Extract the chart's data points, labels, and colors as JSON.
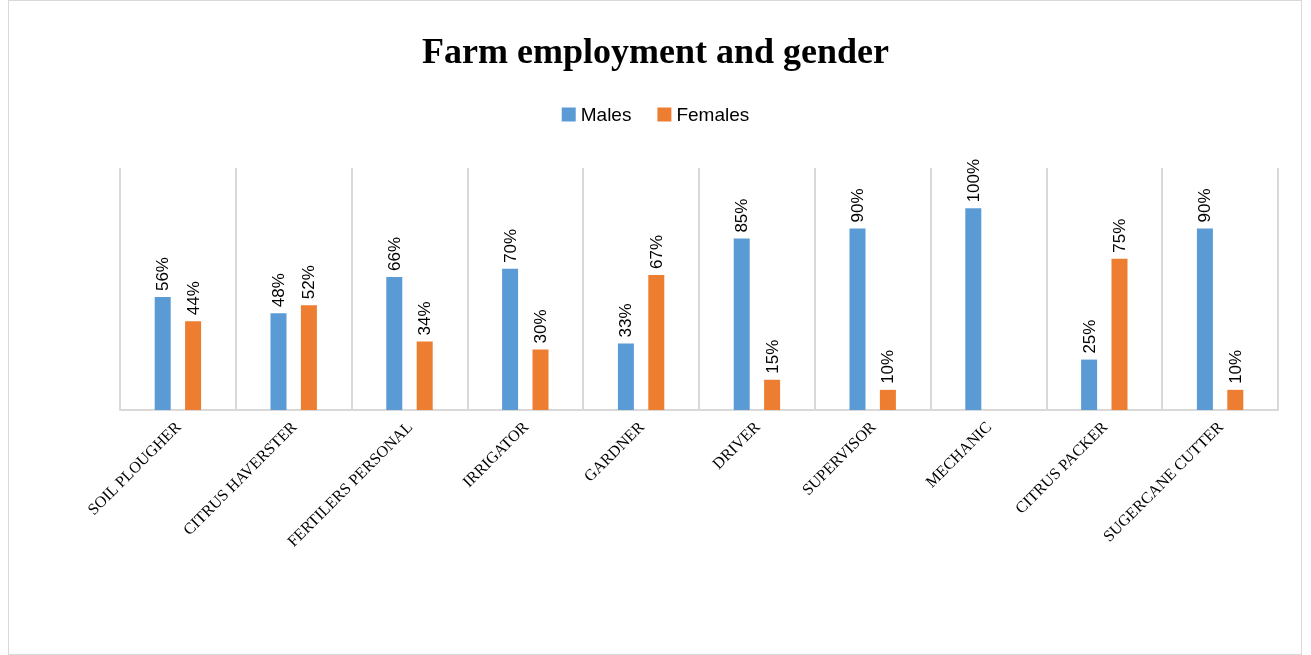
{
  "chart_data": {
    "type": "bar",
    "title": "Farm employment and gender",
    "categories": [
      "SOIL PLOUGHER",
      "CITRUS HAVERSTER",
      "FERTILERS PERSONAL",
      "IRRIGATOR",
      "GARDNER",
      "DRIVER",
      "SUPERVISOR",
      "MECHANIC",
      "CITRUS PACKER",
      "SUGERCANE CUTTER"
    ],
    "series": [
      {
        "name": "Males",
        "color": "#5b9bd5",
        "values": [
          56,
          48,
          66,
          70,
          33,
          85,
          90,
          100,
          25,
          90
        ],
        "value_labels": [
          "56%",
          "48%",
          "66%",
          "70%",
          "33%",
          "85%",
          "90%",
          "100%",
          "25%",
          "90%"
        ]
      },
      {
        "name": "Females",
        "color": "#ed7d31",
        "values": [
          44,
          52,
          34,
          30,
          67,
          15,
          10,
          null,
          75,
          10
        ],
        "value_labels": [
          "44%",
          "52%",
          "34%",
          "30%",
          "67%",
          "15%",
          "10%",
          null,
          "75%",
          "10%"
        ]
      }
    ],
    "ylim": [
      0,
      120
    ],
    "grid": "x",
    "legend": "top",
    "tick_labels": "x"
  }
}
